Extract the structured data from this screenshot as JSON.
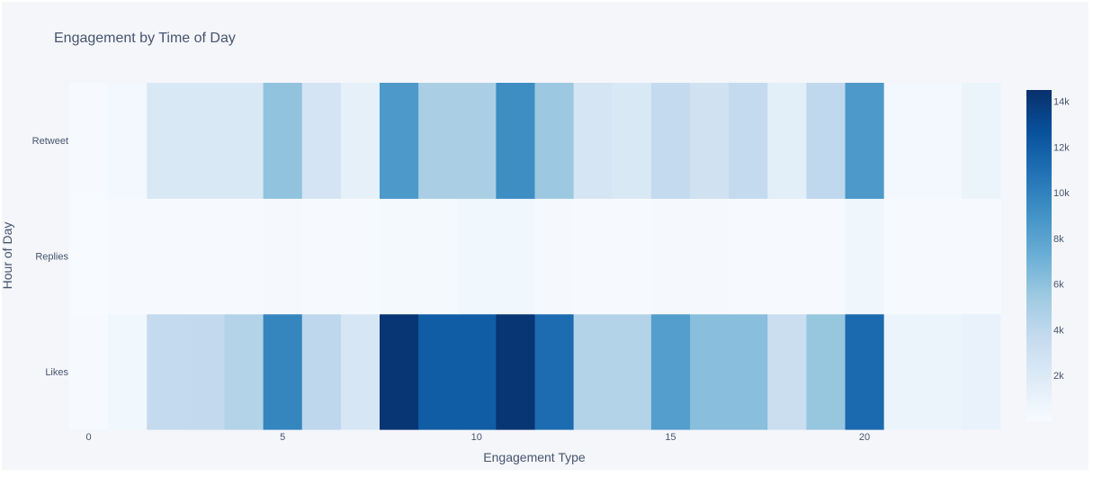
{
  "chart_data": {
    "type": "heatmap",
    "title": "Engagement by Time of Day",
    "xlabel": "Engagement Type",
    "ylabel": "Hour of Day",
    "x": [
      0,
      1,
      2,
      3,
      4,
      5,
      6,
      7,
      8,
      9,
      10,
      11,
      12,
      13,
      14,
      15,
      16,
      17,
      18,
      19,
      20,
      21,
      22,
      23
    ],
    "x_ticks": [
      0,
      5,
      10,
      15,
      20
    ],
    "x_tick_labels": [
      "0",
      "5",
      "10",
      "15",
      "20"
    ],
    "y_categories": [
      "Likes",
      "Replies",
      "Retweet"
    ],
    "z": [
      [
        60,
        480,
        3700,
        3800,
        4500,
        9800,
        4000,
        2400,
        14200,
        12000,
        12000,
        14200,
        11200,
        4500,
        4500,
        8300,
        6200,
        6200,
        3300,
        5700,
        11300,
        800,
        800,
        1000
      ],
      [
        30,
        60,
        80,
        80,
        80,
        180,
        80,
        80,
        250,
        250,
        500,
        500,
        180,
        80,
        80,
        180,
        180,
        80,
        80,
        80,
        600,
        80,
        80,
        80
      ],
      [
        60,
        360,
        2200,
        2200,
        2200,
        5900,
        2600,
        1300,
        8600,
        4900,
        4900,
        9300,
        5500,
        2500,
        2200,
        3700,
        2900,
        3700,
        1500,
        3900,
        8600,
        360,
        360,
        800
      ]
    ],
    "colorscale": "Blues",
    "zmin": 0,
    "zmax": 14500,
    "colorbar_ticks": [
      2000,
      4000,
      6000,
      8000,
      10000,
      12000,
      14000
    ],
    "colorbar_tick_labels": [
      "2k",
      "4k",
      "6k",
      "8k",
      "10k",
      "12k",
      "14k"
    ],
    "colorbar_position": "right"
  }
}
